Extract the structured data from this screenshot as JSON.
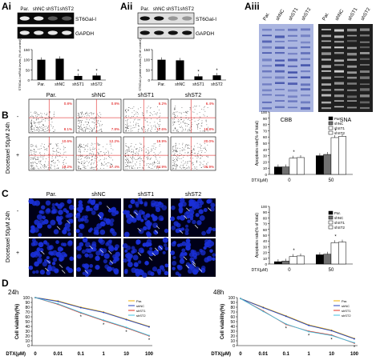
{
  "panels": {
    "Ai": {
      "label": "Ai",
      "cols": [
        "Par.",
        "shNC",
        "shST1",
        "shST2"
      ],
      "rows": [
        "ST6Gal-I",
        "GAPDH"
      ],
      "ylabel": "ST6Gal-I mRNA levels (% of control)"
    },
    "Aii": {
      "label": "Aii",
      "cols": [
        "Par.",
        "shNC",
        "shST1",
        "shST2"
      ],
      "rows": [
        "ST6Gal-I",
        "GAPDH"
      ],
      "ylabel": "ST6Gal-I protein levels (% of control)"
    },
    "Aiii": {
      "label": "Aiii",
      "cols": [
        "Par.",
        "shNC",
        "shST1",
        "shST2",
        "Par.",
        "shNC",
        "shST1",
        "shST2"
      ],
      "cbb": "CBB",
      "sna": "SNA"
    },
    "B": {
      "label": "B",
      "cols": [
        "Par.",
        "shNC",
        "shST1",
        "shST2"
      ],
      "row_side": "Docetaxel 50μM 24h",
      "row_signs": [
        "-",
        "+"
      ],
      "quad_pct": [
        [
          [
            "0.8%",
            "8.1%"
          ],
          [
            "0.8%",
            "7.8%"
          ],
          [
            "6.2%",
            "17.6%"
          ],
          [
            "6.4%",
            "16.8%"
          ]
        ],
        [
          [
            "10.6%",
            "18.2%"
          ],
          [
            "12.2%",
            "17.4%"
          ],
          [
            "19.9%",
            "34.9%"
          ],
          [
            "20.0%",
            "36.9%"
          ]
        ]
      ]
    },
    "C": {
      "label": "C",
      "cols": [
        "Par.",
        "shNC",
        "shST1",
        "shST2"
      ],
      "row_side": "Docetaxel 50μM 24h",
      "row_signs": [
        "-",
        "+"
      ]
    },
    "D": {
      "label": "D",
      "left_title": "24h",
      "right_title": "48h"
    }
  },
  "chart_data": [
    {
      "id": "Ai",
      "type": "bar",
      "categories": [
        "Par.",
        "shNC",
        "shST1",
        "shST2"
      ],
      "values": [
        100,
        105,
        20,
        22
      ],
      "ylim": [
        0,
        150
      ],
      "yticks": [
        "150",
        "100",
        "50",
        "0"
      ],
      "sig": [
        false,
        false,
        true,
        true
      ]
    },
    {
      "id": "Aii",
      "type": "bar",
      "categories": [
        "Par.",
        "shNC",
        "shST1",
        "shST2"
      ],
      "values": [
        100,
        97,
        18,
        23
      ],
      "ylim": [
        0,
        150
      ],
      "yticks": [
        "150",
        "100",
        "50",
        "0"
      ],
      "sig": [
        false,
        false,
        true,
        true
      ]
    },
    {
      "id": "B",
      "type": "bar",
      "ylabel": "Apoptosis rate(% of total)",
      "xlabel": "DTX(μM)",
      "groups": [
        "0",
        "50"
      ],
      "ylim": [
        0,
        100
      ],
      "yticks": [
        "100",
        "90",
        "80",
        "70",
        "60",
        "50",
        "40",
        "30",
        "20",
        "10",
        "0"
      ],
      "series": [
        {
          "name": "Par.",
          "values": [
            12,
            30
          ]
        },
        {
          "name": "shNC",
          "values": [
            12,
            32
          ]
        },
        {
          "name": "shST1",
          "values": [
            26,
            59
          ]
        },
        {
          "name": "shST2",
          "values": [
            27,
            61
          ]
        }
      ],
      "sig_group": [
        true,
        true
      ]
    },
    {
      "id": "C",
      "type": "bar",
      "ylabel": "Apoptosis rate(% of total)",
      "xlabel": "DTX(μM)",
      "groups": [
        "0",
        "50"
      ],
      "ylim": [
        0,
        100
      ],
      "yticks": [
        "100",
        "90",
        "80",
        "70",
        "60",
        "50",
        "40",
        "30",
        "20",
        "10",
        "0"
      ],
      "series": [
        {
          "name": "Par.",
          "values": [
            4,
            16
          ]
        },
        {
          "name": "shNC",
          "values": [
            5,
            17
          ]
        },
        {
          "name": "shST1",
          "values": [
            13,
            37
          ]
        },
        {
          "name": "shST2",
          "values": [
            14,
            38
          ]
        }
      ],
      "sig_group": [
        true,
        true
      ]
    },
    {
      "id": "D24",
      "type": "line",
      "title": "24h",
      "ylabel": "Cell viability(%)",
      "xlabel": "DTX(μM)",
      "categories": [
        "0",
        "0.01",
        "0.1",
        "1",
        "10",
        "100"
      ],
      "ylim": [
        0,
        100
      ],
      "yticks": [
        "100",
        "90",
        "80",
        "70",
        "60",
        "50",
        "40",
        "30",
        "20",
        "10",
        "0"
      ],
      "series": [
        {
          "name": "Par.",
          "values": [
            100,
            93,
            80,
            70,
            55,
            40
          ]
        },
        {
          "name": "shNC",
          "values": [
            100,
            92,
            79,
            69,
            54,
            39
          ]
        },
        {
          "name": "shST1",
          "values": [
            100,
            86,
            68,
            52,
            37,
            20
          ]
        },
        {
          "name": "shST2",
          "values": [
            100,
            87,
            69,
            53,
            38,
            21
          ]
        }
      ]
    },
    {
      "id": "D48",
      "type": "line",
      "title": "48h",
      "ylabel": "Cell viability(%)",
      "xlabel": "DTX(μM)",
      "categories": [
        "0",
        "0.01",
        "0.1",
        "1",
        "10",
        "100"
      ],
      "ylim": [
        0,
        100
      ],
      "yticks": [
        "100",
        "90",
        "80",
        "70",
        "60",
        "50",
        "40",
        "30",
        "20",
        "10",
        "0"
      ],
      "series": [
        {
          "name": "Par.",
          "values": [
            98,
            80,
            62,
            43,
            32,
            15
          ]
        },
        {
          "name": "shNC",
          "values": [
            98,
            79,
            61,
            42,
            31,
            14
          ]
        },
        {
          "name": "shST1",
          "values": [
            98,
            72,
            44,
            30,
            22,
            5
          ]
        },
        {
          "name": "shST2",
          "values": [
            98,
            71,
            45,
            29,
            21,
            6
          ]
        }
      ]
    }
  ],
  "legend_colors": {
    "Par.": "#f0b000",
    "shNC": "#2040c0",
    "shST1": "#e03020",
    "shST2": "#40c0e0"
  },
  "bar_fills": [
    "#000000",
    "#707070",
    "#ffffff",
    "#ffffff"
  ]
}
